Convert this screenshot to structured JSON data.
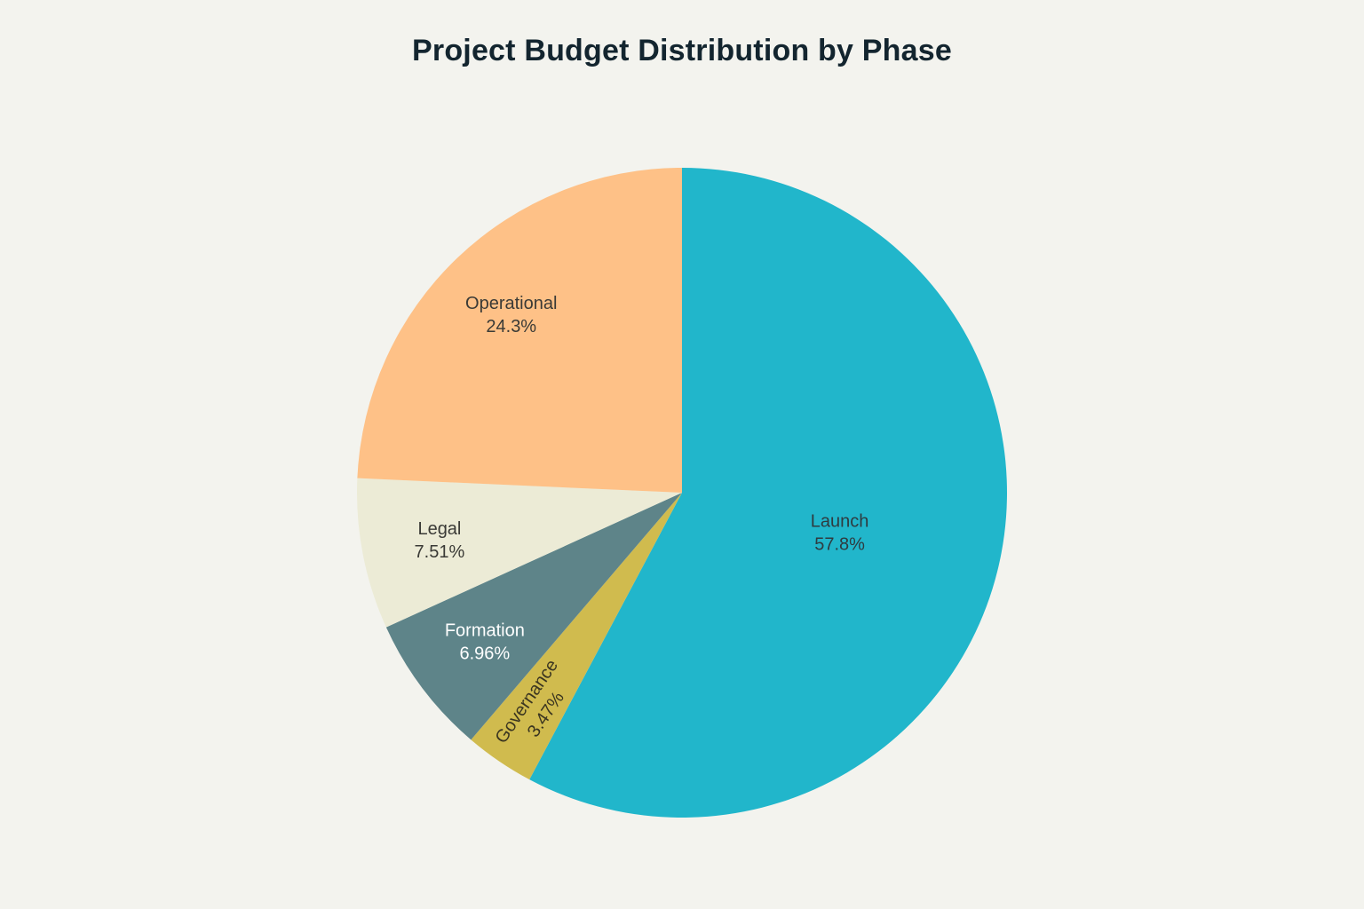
{
  "chart_data": {
    "type": "pie",
    "title": "Project Budget Distribution by Phase",
    "slices": [
      {
        "label": "Launch",
        "value": 57.8,
        "value_text": "57.8%",
        "color": "#21b6cb",
        "text_color": "#2f3b40"
      },
      {
        "label": "Governance",
        "value": 3.47,
        "value_text": "3.47%",
        "color": "#d0bb4e",
        "text_color": "#3a3520",
        "rotated_label": true
      },
      {
        "label": "Formation",
        "value": 6.96,
        "value_text": "6.96%",
        "color": "#5e8489",
        "text_color": "#ffffff"
      },
      {
        "label": "Legal",
        "value": 7.51,
        "value_text": "7.51%",
        "color": "#ecebd6",
        "text_color": "#3a3a36"
      },
      {
        "label": "Operational",
        "value": 24.3,
        "value_text": "24.3%",
        "color": "#fec187",
        "text_color": "#3a3a36"
      }
    ],
    "start_angle": "top",
    "direction": "clockwise",
    "legend": "none"
  }
}
